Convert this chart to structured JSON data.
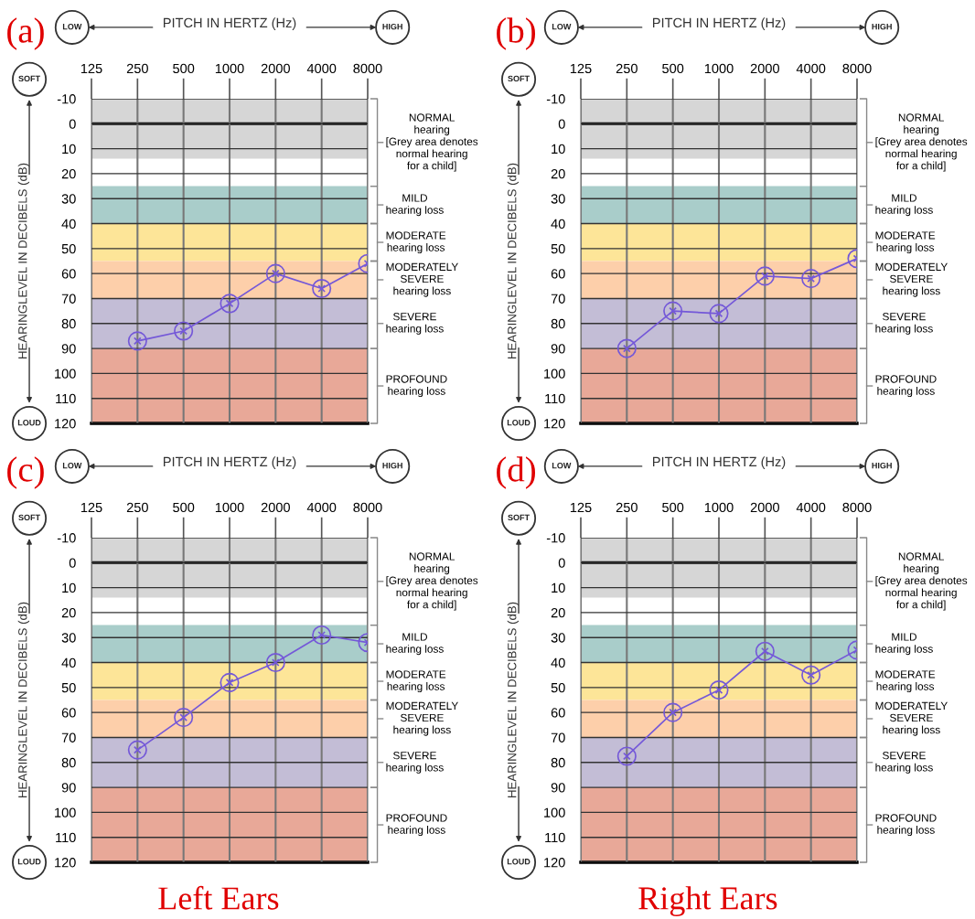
{
  "chart_data": [
    {
      "type": "line",
      "title": "(a)",
      "xlabel": "PITCH IN HERTZ (Hz)",
      "ylabel": "HEARINGLEVEL IN DECIBELS (dB)",
      "annotations": [
        "LOW",
        "HIGH",
        "SOFT",
        "LOUD"
      ],
      "log": "x",
      "xlim": [
        125,
        8000
      ],
      "xticks": [
        125,
        250,
        500,
        1000,
        2000,
        4000,
        8000
      ],
      "ylim": [
        120,
        -10
      ],
      "yticks": [
        -10,
        0,
        10,
        20,
        30,
        40,
        50,
        60,
        70,
        80,
        90,
        100,
        110,
        120
      ],
      "grid": true,
      "marker": "circle",
      "line_style": "solid",
      "x": [
        250,
        500,
        1000,
        2000,
        4000,
        8000
      ],
      "series": [
        {
          "color": "#7458d8",
          "values": [
            87,
            83,
            72,
            60,
            66,
            56
          ]
        }
      ],
      "ref_lines": [
        {
          "axis": "y",
          "value": 0,
          "color": "#000000"
        }
      ],
      "bands": [
        {
          "axis": "y",
          "from": -10,
          "to": 14,
          "color": "#d6d6d6",
          "label": "NORMAL\nhearing\n[Grey area denotes\nnormal hearing\nfor a child]"
        },
        {
          "axis": "y",
          "from": 25,
          "to": 40,
          "color": "#a9cdca",
          "label": "MILD\nhearing loss"
        },
        {
          "axis": "y",
          "from": 40,
          "to": 55,
          "color": "#fde598",
          "label": "MODERATE\nhearing loss"
        },
        {
          "axis": "y",
          "from": 55,
          "to": 70,
          "color": "#fdcfaa",
          "label": "MODERATELY\nSEVERE\nhearing loss"
        },
        {
          "axis": "y",
          "from": 70,
          "to": 90,
          "color": "#c3bdd6",
          "label": "SEVERE\nhearing loss"
        },
        {
          "axis": "y",
          "from": 90,
          "to": 120,
          "color": "#e8a898",
          "label": "PROFOUND\nhearing loss"
        }
      ]
    },
    {
      "type": "line",
      "title": "(b)",
      "xlabel": "PITCH IN HERTZ (Hz)",
      "ylabel": "HEARINGLEVEL IN DECIBELS (dB)",
      "annotations": [
        "LOW",
        "HIGH",
        "SOFT",
        "LOUD"
      ],
      "log": "x",
      "xlim": [
        125,
        8000
      ],
      "xticks": [
        125,
        250,
        500,
        1000,
        2000,
        4000,
        8000
      ],
      "ylim": [
        120,
        -10
      ],
      "yticks": [
        -10,
        0,
        10,
        20,
        30,
        40,
        50,
        60,
        70,
        80,
        90,
        100,
        110,
        120
      ],
      "grid": true,
      "marker": "circle",
      "line_style": "solid",
      "x": [
        250,
        500,
        1000,
        2000,
        4000,
        8000
      ],
      "series": [
        {
          "color": "#7458d8",
          "values": [
            90,
            75,
            76,
            61,
            62,
            54
          ]
        }
      ],
      "ref_lines": [
        {
          "axis": "y",
          "value": 0,
          "color": "#000000"
        }
      ],
      "bands": [
        {
          "axis": "y",
          "from": -10,
          "to": 14,
          "color": "#d6d6d6",
          "label": "NORMAL\nhearing\n[Grey area denotes\nnormal hearing\nfor a child]"
        },
        {
          "axis": "y",
          "from": 25,
          "to": 40,
          "color": "#a9cdca",
          "label": "MILD\nhearing loss"
        },
        {
          "axis": "y",
          "from": 40,
          "to": 55,
          "color": "#fde598",
          "label": "MODERATE\nhearing loss"
        },
        {
          "axis": "y",
          "from": 55,
          "to": 70,
          "color": "#fdcfaa",
          "label": "MODERATELY\nSEVERE\nhearing loss"
        },
        {
          "axis": "y",
          "from": 70,
          "to": 90,
          "color": "#c3bdd6",
          "label": "SEVERE\nhearing loss"
        },
        {
          "axis": "y",
          "from": 90,
          "to": 120,
          "color": "#e8a898",
          "label": "PROFOUND\nhearing loss"
        }
      ]
    },
    {
      "type": "line",
      "title": "(c)",
      "xlabel": "PITCH IN HERTZ (Hz)",
      "ylabel": "HEARINGLEVEL IN DECIBELS (dB)",
      "annotations": [
        "LOW",
        "HIGH",
        "SOFT",
        "LOUD",
        "Left Ears"
      ],
      "log": "x",
      "xlim": [
        125,
        8000
      ],
      "xticks": [
        125,
        250,
        500,
        1000,
        2000,
        4000,
        8000
      ],
      "ylim": [
        120,
        -10
      ],
      "yticks": [
        -10,
        0,
        10,
        20,
        30,
        40,
        50,
        60,
        70,
        80,
        90,
        100,
        110,
        120
      ],
      "grid": true,
      "marker": "circle",
      "line_style": "solid",
      "x": [
        250,
        500,
        1000,
        2000,
        4000,
        8000
      ],
      "series": [
        {
          "color": "#7458d8",
          "values": [
            75,
            62,
            48,
            40,
            29,
            32
          ]
        }
      ],
      "ref_lines": [
        {
          "axis": "y",
          "value": 0,
          "color": "#000000"
        }
      ],
      "bands": [
        {
          "axis": "y",
          "from": -10,
          "to": 14,
          "color": "#d6d6d6",
          "label": "NORMAL\nhearing\n[Grey area denotes\nnormal hearing\nfor a child]"
        },
        {
          "axis": "y",
          "from": 25,
          "to": 40,
          "color": "#a9cdca",
          "label": "MILD\nhearing loss"
        },
        {
          "axis": "y",
          "from": 40,
          "to": 55,
          "color": "#fde598",
          "label": "MODERATE\nhearing loss"
        },
        {
          "axis": "y",
          "from": 55,
          "to": 70,
          "color": "#fdcfaa",
          "label": "MODERATELY\nSEVERE\nhearing loss"
        },
        {
          "axis": "y",
          "from": 70,
          "to": 90,
          "color": "#c3bdd6",
          "label": "SEVERE\nhearing loss"
        },
        {
          "axis": "y",
          "from": 90,
          "to": 120,
          "color": "#e8a898",
          "label": "PROFOUND\nhearing loss"
        }
      ]
    },
    {
      "type": "line",
      "title": "(d)",
      "xlabel": "PITCH IN HERTZ (Hz)",
      "ylabel": "HEARINGLEVEL IN DECIBELS (dB)",
      "annotations": [
        "LOW",
        "HIGH",
        "SOFT",
        "LOUD",
        "Right Ears"
      ],
      "log": "x",
      "xlim": [
        125,
        8000
      ],
      "xticks": [
        125,
        250,
        500,
        1000,
        2000,
        4000,
        8000
      ],
      "ylim": [
        120,
        -10
      ],
      "yticks": [
        -10,
        0,
        10,
        20,
        30,
        40,
        50,
        60,
        70,
        80,
        90,
        100,
        110,
        120
      ],
      "grid": true,
      "marker": "circle",
      "line_style": "solid",
      "x": [
        250,
        500,
        1000,
        2000,
        4000,
        8000
      ],
      "series": [
        {
          "color": "#7458d8",
          "values": [
            77.5,
            60,
            51,
            35.5,
            45,
            35
          ]
        }
      ],
      "ref_lines": [
        {
          "axis": "y",
          "value": 0,
          "color": "#000000"
        }
      ],
      "bands": [
        {
          "axis": "y",
          "from": -10,
          "to": 14,
          "color": "#d6d6d6",
          "label": "NORMAL\nhearing\n[Grey area denotes\nnormal hearing\nfor a child]"
        },
        {
          "axis": "y",
          "from": 25,
          "to": 40,
          "color": "#a9cdca",
          "label": "MILD\nhearing loss"
        },
        {
          "axis": "y",
          "from": 40,
          "to": 55,
          "color": "#fde598",
          "label": "MODERATE\nhearing loss"
        },
        {
          "axis": "y",
          "from": 55,
          "to": 70,
          "color": "#fdcfaa",
          "label": "MODERATELY\nSEVERE\nhearing loss"
        },
        {
          "axis": "y",
          "from": 70,
          "to": 90,
          "color": "#c3bdd6",
          "label": "SEVERE\nhearing loss"
        },
        {
          "axis": "y",
          "from": 90,
          "to": 120,
          "color": "#e8a898",
          "label": "PROFOUND\nhearing loss"
        }
      ]
    }
  ]
}
